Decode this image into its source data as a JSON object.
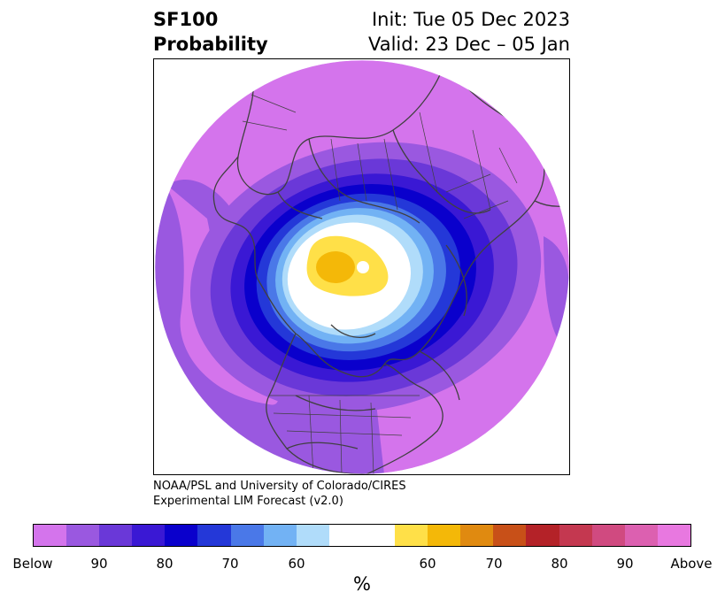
{
  "header": {
    "title_line1": "SF100",
    "title_line2": "Probability",
    "init": "Init: Tue 05 Dec 2023",
    "valid": "Valid: 23 Dec – 05 Jan"
  },
  "credit": {
    "line1": "NOAA/PSL and University of Colorado/CIRES",
    "line2": "Experimental LIM Forecast (v2.0)"
  },
  "colorbar": {
    "unit": "%",
    "colors": [
      "#d474ec",
      "#9a58e0",
      "#6a38d8",
      "#3a18d4",
      "#0a00cc",
      "#2438d8",
      "#4a78e8",
      "#72b2f4",
      "#b0dcfa",
      "#ffffff",
      "#ffffff",
      "#ffe048",
      "#f4b808",
      "#e08a10",
      "#c85018",
      "#b42228",
      "#c43850",
      "#d04a80",
      "#dc60b0",
      "#e878e0"
    ],
    "tick_labels": [
      "Below",
      "90",
      "80",
      "70",
      "60",
      "60",
      "70",
      "80",
      "90",
      "Above"
    ]
  },
  "map": {
    "projection": "north-polar-stereographic",
    "background_category": "Below",
    "anomaly_center_category": "Above 60",
    "region_colors": {
      "outer": "#d474ec",
      "ring1": "#9a58e0",
      "ring2": "#6a38d8",
      "ring3": "#3a18d4",
      "ring4": "#0a00cc",
      "ring5": "#2438d8",
      "ring6": "#4a78e8",
      "ring7": "#72b2f4",
      "ring8": "#b0dcfa",
      "center": "#ffffff",
      "above1": "#ffe048",
      "above2": "#f4b808",
      "coast": "#404040"
    }
  }
}
